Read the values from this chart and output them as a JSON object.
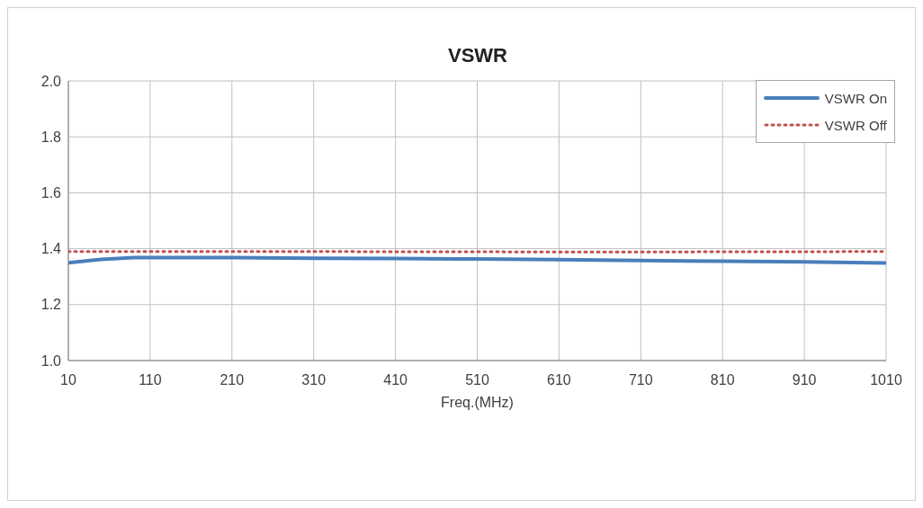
{
  "chart_data": {
    "type": "line",
    "title": "VSWR",
    "xlabel": "Freq.(MHz)",
    "x": [
      10,
      50,
      90,
      110,
      210,
      310,
      410,
      510,
      610,
      710,
      810,
      910,
      1010
    ],
    "series": [
      {
        "name": "VSWR On",
        "color": "#4a7ebb",
        "line_style": "solid",
        "values": [
          1.35,
          1.362,
          1.368,
          1.368,
          1.368,
          1.366,
          1.365,
          1.363,
          1.361,
          1.358,
          1.355,
          1.353,
          1.349
        ]
      },
      {
        "name": "VSWR Off",
        "color": "#c0504d",
        "line_style": "dotted",
        "values": [
          1.39,
          1.39,
          1.39,
          1.39,
          1.39,
          1.39,
          1.389,
          1.389,
          1.388,
          1.388,
          1.389,
          1.389,
          1.39
        ]
      }
    ],
    "xlim": [
      10,
      1010
    ],
    "xticks": [
      10,
      110,
      210,
      310,
      410,
      510,
      610,
      710,
      810,
      910,
      1010
    ],
    "ylim": [
      1.0,
      2.0
    ],
    "yticks": [
      {
        "value": 1,
        "label": "1.0"
      },
      1.2,
      1.4,
      1.6,
      1.8,
      {
        "value": 2,
        "label": "2.0"
      }
    ],
    "grid": true,
    "legend": "top right",
    "marker": "none"
  }
}
